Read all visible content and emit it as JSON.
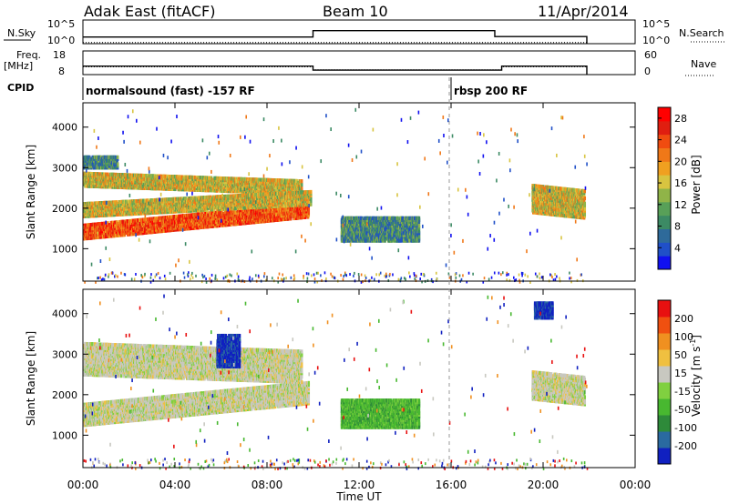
{
  "header": {
    "title": "Adak East (fitACF)",
    "beam": "Beam 10",
    "date": "11/Apr/2014"
  },
  "noise_panel": {
    "left_label": "N.Sky",
    "left_ticks": [
      "10^5",
      "10^0"
    ],
    "right_ticks": [
      "10^5",
      "10^0"
    ],
    "right_label": "N.Search",
    "sky_levels": [
      {
        "t0": 0.0,
        "t1": 10.0,
        "level": 0.28
      },
      {
        "t0": 10.0,
        "t1": 17.9,
        "level": 0.55
      },
      {
        "t0": 17.9,
        "t1": 21.9,
        "level": 0.3
      }
    ],
    "search_level": 0.05
  },
  "freq_panel": {
    "left_label_1": "Freq.",
    "left_label_2": "[MHz]",
    "left_ticks": [
      "18",
      "8"
    ],
    "right_ticks": [
      "60",
      "0"
    ],
    "right_label": "Nave",
    "freq_steps": [
      {
        "t0": 0.0,
        "t1": 10.0,
        "mhz": 11.6
      },
      {
        "t0": 10.0,
        "t1": 18.2,
        "mhz": 9.9
      },
      {
        "t0": 18.2,
        "t1": 21.9,
        "mhz": 11.6
      }
    ],
    "nave_dotted": [
      {
        "t0": 0.0,
        "t1": 10.0,
        "v": 20
      },
      {
        "t0": 10.0,
        "t1": 18.2,
        "v": 12
      },
      {
        "t0": 18.2,
        "t1": 21.9,
        "v": 20
      }
    ]
  },
  "cpid": {
    "label": "CPID",
    "segments": [
      {
        "start": 0.0,
        "text": "normalsound (fast) -157 RF"
      },
      {
        "start": 16.0,
        "text": "rbsp 200 RF"
      }
    ]
  },
  "chart_data": [
    {
      "type": "heatmap",
      "quantity": "Power",
      "ylabel": "Slant Range [km]",
      "xlabel": "Time UT",
      "ylim": [
        200,
        4600
      ],
      "yticks": [
        1000,
        2000,
        3000,
        4000
      ],
      "xlim_hours": [
        0,
        24
      ],
      "colorbar": {
        "label": "Power [dB]",
        "ticks": [
          "4",
          "8",
          "12",
          "16",
          "20",
          "24",
          "28"
        ],
        "range": [
          0,
          30
        ],
        "colors": [
          "#1010f0",
          "#2050c8",
          "#2e6a9a",
          "#3c8a64",
          "#58a058",
          "#90b448",
          "#d8c440",
          "#f0a020",
          "#f07818",
          "#f04c10",
          "#e01e10",
          "#ff0000"
        ]
      },
      "features": [
        {
          "desc": "main band",
          "t0": 0.0,
          "t1": 9.8,
          "r0": 1250,
          "r1": 1620,
          "slope": 55,
          "band": "strong"
        },
        {
          "desc": "upper band",
          "t0": 0.0,
          "t1": 9.5,
          "r0": 2550,
          "r1": 2900,
          "slope": -20,
          "band": "medium"
        },
        {
          "desc": "3000 km echo",
          "t0": 0.0,
          "t1": 1.5,
          "r0": 3000,
          "r1": 3300,
          "slope": 0,
          "band": "weak"
        },
        {
          "desc": "mid band",
          "t0": 0.0,
          "t1": 9.9,
          "r0": 1800,
          "r1": 2150,
          "slope": 30,
          "band": "medium"
        },
        {
          "desc": "12 UT patch",
          "t0": 11.2,
          "t1": 14.6,
          "r0": 1200,
          "r1": 1800,
          "slope": 0,
          "band": "weak"
        },
        {
          "desc": "late arc",
          "t0": 19.5,
          "t1": 21.8,
          "r0": 1900,
          "r1": 2600,
          "slope": -60,
          "band": "medium"
        }
      ]
    },
    {
      "type": "heatmap",
      "quantity": "Velocity",
      "ylabel": "Slant Range [km]",
      "xlabel": "Time UT",
      "ylim": [
        200,
        4600
      ],
      "yticks": [
        1000,
        2000,
        3000,
        4000
      ],
      "xlim_hours": [
        0,
        24
      ],
      "xticks": [
        "00:00",
        "04:00",
        "08:00",
        "12:00",
        "16:00",
        "20:00",
        "00:00"
      ],
      "colorbar": {
        "label": "Velocity [m s",
        "label_sup": "-1",
        "label_end": "]",
        "ticks": [
          "200",
          "100",
          "50",
          "15",
          "-15",
          "-50",
          "-100",
          "-200"
        ],
        "colors": [
          "#1020c0",
          "#2a6aa0",
          "#2e8a3a",
          "#48b830",
          "#80d040",
          "#c8c8c0",
          "#f0c040",
          "#f09020",
          "#f05010",
          "#e81010"
        ]
      },
      "features": [
        {
          "desc": "ground scatter band",
          "t0": 0.0,
          "t1": 9.8,
          "r0": 1250,
          "r1": 1800,
          "slope": 55,
          "band": "gray"
        },
        {
          "desc": "upper gray band",
          "t0": 0.0,
          "t1": 9.5,
          "r0": 2500,
          "r1": 3300,
          "slope": -20,
          "band": "gray"
        },
        {
          "desc": "green patch",
          "t0": 11.2,
          "t1": 14.6,
          "r0": 1200,
          "r1": 1900,
          "slope": 0,
          "band": "green"
        },
        {
          "desc": "blue echoes 06 UT",
          "t0": 5.8,
          "t1": 6.8,
          "r0": 2700,
          "r1": 3500,
          "slope": 0,
          "band": "blue"
        },
        {
          "desc": "blue echoes 20 UT",
          "t0": 19.6,
          "t1": 20.4,
          "r0": 3900,
          "r1": 4300,
          "slope": 0,
          "band": "blue"
        },
        {
          "desc": "late gray arc",
          "t0": 19.5,
          "t1": 21.8,
          "r0": 1900,
          "r1": 2600,
          "slope": -60,
          "band": "gray"
        }
      ]
    }
  ]
}
